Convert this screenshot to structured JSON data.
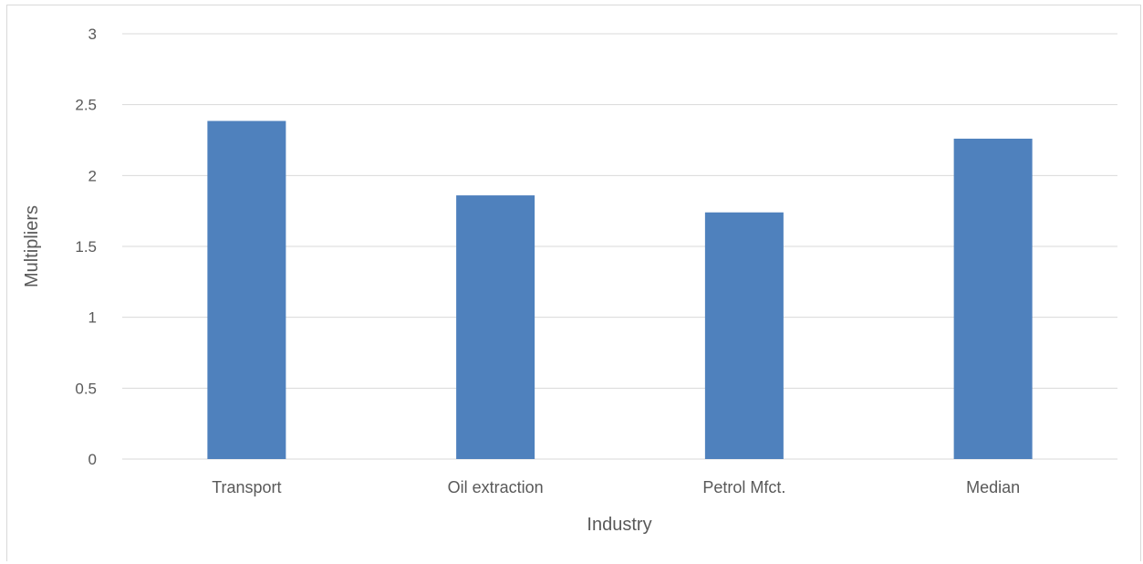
{
  "chart_data": {
    "type": "bar",
    "categories": [
      "Transport",
      "Oil extraction",
      "Petrol Mfct.",
      "Median"
    ],
    "values": [
      2.385,
      1.86,
      1.74,
      2.26
    ],
    "xlabel": "Industry",
    "ylabel": "Multipliers",
    "ylim": [
      0,
      3
    ],
    "yticks": [
      0,
      0.5,
      1,
      1.5,
      2,
      2.5,
      3
    ],
    "ytick_labels": [
      "0",
      "0.5",
      "1",
      "1.5",
      "2",
      "2.5",
      "3"
    ],
    "grid": true,
    "legend": "none",
    "bar_color": "#4f81bd",
    "grid_color": "#d9d9d9",
    "text_color": "#595959"
  }
}
